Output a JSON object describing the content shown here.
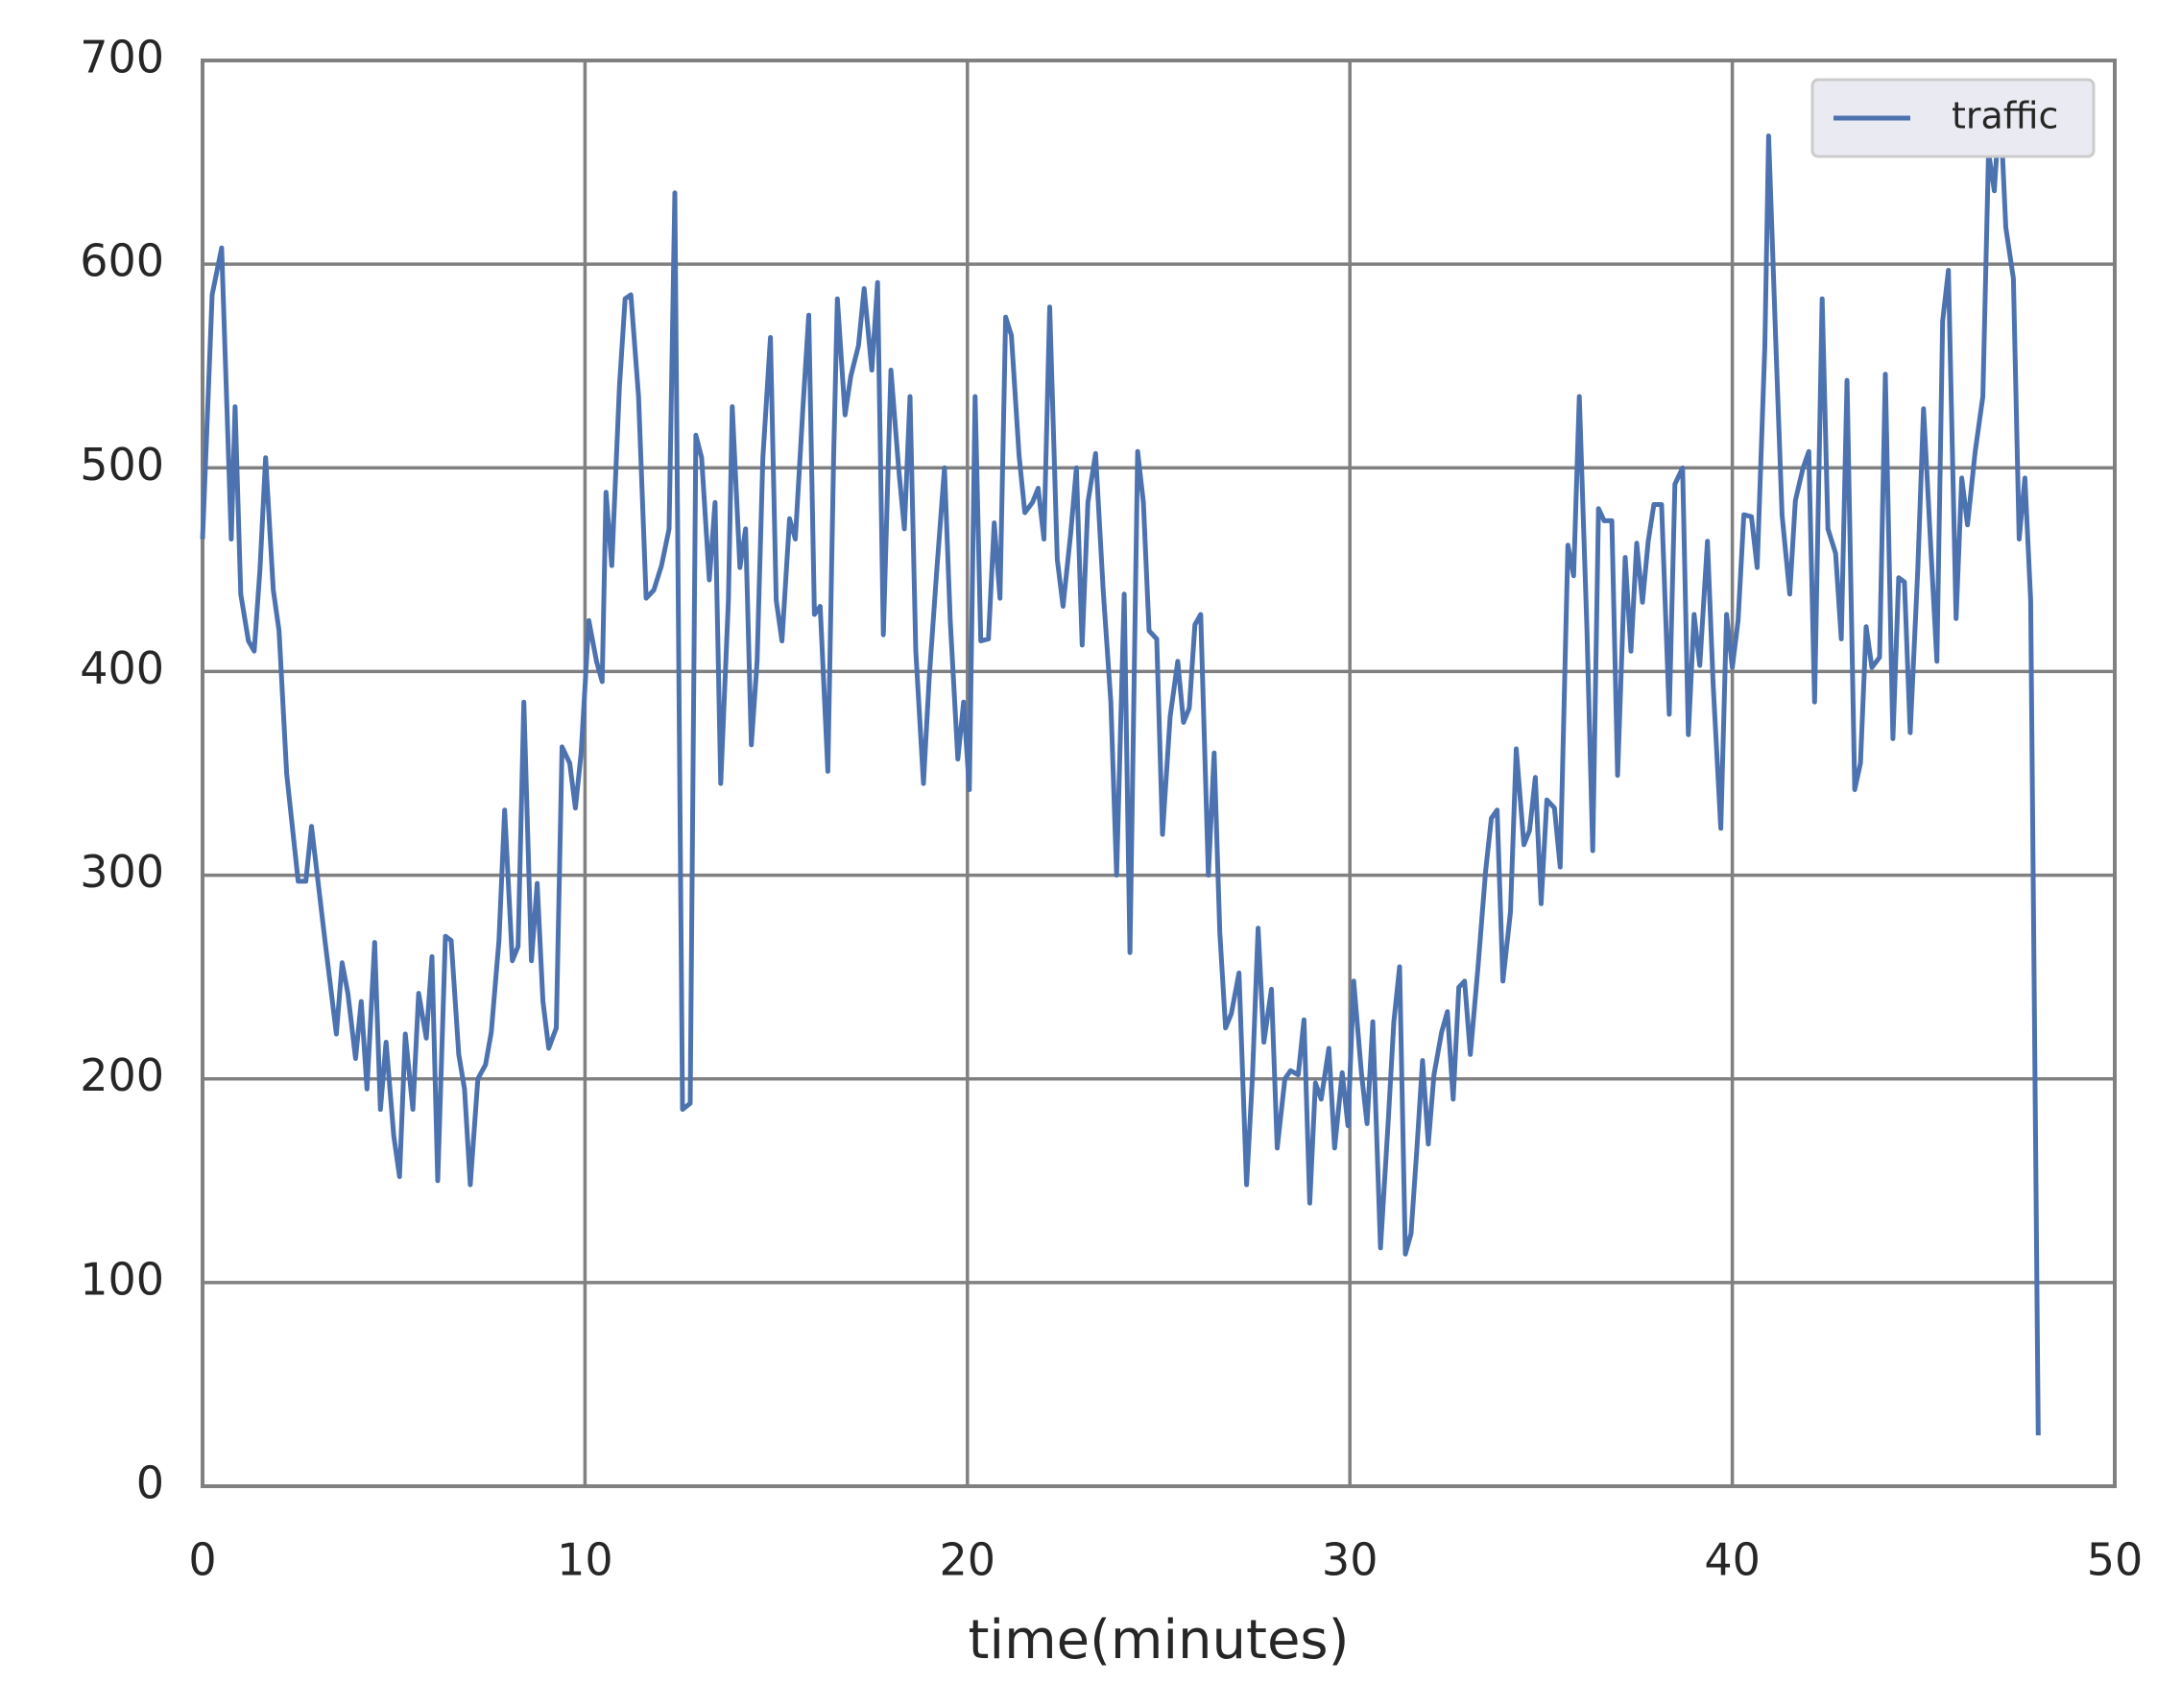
{
  "chart_data": {
    "type": "line",
    "x_label": "time(minutes)",
    "xlim": [
      0,
      50
    ],
    "xticks": [
      0,
      10,
      20,
      30,
      40,
      50
    ],
    "ylim": [
      0,
      700
    ],
    "yticks": [
      0,
      100,
      200,
      300,
      400,
      500,
      600,
      700
    ],
    "grid": true,
    "legend": "upper right",
    "x": [
      0,
      0.25,
      0.5,
      0.75,
      0.85,
      1.0,
      1.2,
      1.35,
      1.5,
      1.65,
      1.85,
      2.0,
      2.2,
      2.5,
      2.7,
      2.85,
      3.0,
      3.2,
      3.5,
      3.65,
      3.8,
      4.0,
      4.15,
      4.3,
      4.5,
      4.65,
      4.8,
      5.0,
      5.15,
      5.3,
      5.5,
      5.65,
      5.85,
      6.0,
      6.15,
      6.35,
      6.5,
      6.7,
      6.85,
      7.0,
      7.2,
      7.4,
      7.55,
      7.75,
      7.9,
      8.1,
      8.25,
      8.4,
      8.6,
      8.75,
      8.9,
      9.05,
      9.25,
      9.4,
      9.6,
      9.75,
      9.9,
      10.1,
      10.3,
      10.45,
      10.55,
      10.7,
      10.9,
      11.05,
      11.2,
      11.4,
      11.6,
      11.8,
      12.0,
      12.2,
      12.35,
      12.55,
      12.75,
      12.9,
      13.05,
      13.25,
      13.4,
      13.55,
      13.75,
      13.85,
      14.05,
      14.2,
      14.35,
      14.5,
      14.65,
      14.85,
      15.0,
      15.15,
      15.35,
      15.5,
      15.7,
      15.85,
      16.0,
      16.15,
      16.35,
      16.5,
      16.6,
      16.8,
      16.95,
      17.15,
      17.3,
      17.5,
      17.65,
      17.8,
      18.0,
      18.2,
      18.35,
      18.5,
      18.65,
      18.85,
      19.0,
      19.2,
      19.4,
      19.55,
      19.75,
      19.9,
      20.05,
      20.2,
      20.35,
      20.55,
      20.7,
      20.85,
      21.0,
      21.15,
      21.35,
      21.5,
      21.7,
      21.85,
      22.0,
      22.15,
      22.35,
      22.5,
      22.7,
      22.85,
      23.0,
      23.15,
      23.35,
      23.55,
      23.75,
      23.9,
      24.1,
      24.25,
      24.45,
      24.6,
      24.75,
      24.95,
      25.1,
      25.3,
      25.5,
      25.65,
      25.8,
      25.95,
      26.1,
      26.3,
      26.45,
      26.6,
      26.75,
      26.9,
      27.1,
      27.3,
      27.45,
      27.6,
      27.75,
      27.95,
      28.1,
      28.3,
      28.45,
      28.65,
      28.8,
      28.95,
      29.1,
      29.25,
      29.45,
      29.6,
      29.8,
      29.95,
      30.1,
      30.3,
      30.45,
      30.6,
      30.8,
      31.0,
      31.15,
      31.3,
      31.45,
      31.6,
      31.75,
      31.9,
      32.05,
      32.2,
      32.4,
      32.55,
      32.7,
      32.85,
      33.0,
      33.15,
      33.35,
      33.55,
      33.7,
      33.85,
      34.0,
      34.2,
      34.35,
      34.55,
      34.7,
      34.85,
      35.0,
      35.15,
      35.35,
      35.5,
      35.7,
      35.85,
      36.0,
      36.2,
      36.35,
      36.5,
      36.65,
      36.85,
      37.0,
      37.2,
      37.35,
      37.5,
      37.65,
      37.8,
      37.95,
      38.15,
      38.35,
      38.5,
      38.7,
      38.85,
      39.0,
      39.15,
      39.35,
      39.5,
      39.7,
      39.85,
      40.0,
      40.15,
      40.3,
      40.5,
      40.65,
      40.85,
      40.95,
      41.15,
      41.3,
      41.5,
      41.65,
      41.85,
      42.0,
      42.15,
      42.35,
      42.5,
      42.7,
      42.85,
      43.0,
      43.2,
      43.35,
      43.5,
      43.65,
      43.85,
      44.0,
      44.2,
      44.35,
      44.5,
      44.65,
      44.85,
      45.0,
      45.2,
      45.35,
      45.5,
      45.65,
      45.85,
      46.0,
      46.15,
      46.35,
      46.55,
      46.7,
      46.85,
      47.0,
      47.15,
      47.35,
      47.5,
      47.65,
      47.8,
      48.0
    ],
    "series": [
      {
        "name": "traffic",
        "color": "#4c72b0",
        "values": [
          465,
          585,
          608,
          465,
          530,
          438,
          415,
          410,
          450,
          505,
          440,
          420,
          350,
          297,
          297,
          324,
          300,
          268,
          222,
          257,
          242,
          210,
          238,
          195,
          267,
          185,
          218,
          172,
          152,
          222,
          185,
          242,
          220,
          260,
          150,
          270,
          268,
          212,
          195,
          148,
          200,
          207,
          223,
          268,
          332,
          258,
          265,
          385,
          258,
          296,
          238,
          215,
          225,
          363,
          355,
          333,
          360,
          425,
          405,
          395,
          488,
          452,
          540,
          583,
          585,
          535,
          436,
          440,
          452,
          470,
          635,
          185,
          188,
          516,
          505,
          445,
          483,
          345,
          435,
          530,
          451,
          470,
          364,
          405,
          505,
          564,
          435,
          415,
          475,
          465,
          530,
          575,
          428,
          432,
          351,
          505,
          583,
          526,
          545,
          560,
          588,
          548,
          591,
          418,
          548,
          500,
          470,
          535,
          410,
          345,
          397,
          450,
          500,
          425,
          357,
          385,
          342,
          535,
          415,
          416,
          473,
          436,
          574,
          565,
          506,
          478,
          483,
          490,
          465,
          579,
          455,
          432,
          468,
          500,
          413,
          483,
          507,
          440,
          385,
          300,
          438,
          262,
          508,
          483,
          420,
          416,
          320,
          378,
          405,
          375,
          382,
          423,
          428,
          300,
          360,
          272,
          225,
          232,
          252,
          148,
          200,
          274,
          218,
          244,
          166,
          200,
          204,
          202,
          229,
          139,
          198,
          190,
          215,
          166,
          203,
          177,
          248,
          203,
          178,
          228,
          117,
          178,
          228,
          255,
          114,
          124,
          165,
          209,
          168,
          202,
          223,
          233,
          190,
          245,
          248,
          212,
          255,
          302,
          328,
          332,
          248,
          282,
          362,
          315,
          322,
          348,
          286,
          337,
          333,
          304,
          462,
          447,
          535,
          420,
          312,
          480,
          474,
          474,
          349,
          456,
          410,
          463,
          434,
          464,
          482,
          482,
          379,
          492,
          500,
          369,
          428,
          403,
          464,
          393,
          323,
          428,
          402,
          425,
          477,
          476,
          451,
          560,
          663,
          555,
          477,
          438,
          484,
          500,
          508,
          385,
          583,
          470,
          458,
          416,
          543,
          342,
          355,
          422,
          402,
          407,
          546,
          367,
          446,
          444,
          370,
          450,
          529,
          457,
          405,
          572,
          597,
          426,
          495,
          472,
          508,
          535,
          655,
          636,
          680,
          618,
          593,
          465,
          495,
          435,
          25
        ]
      }
    ]
  }
}
